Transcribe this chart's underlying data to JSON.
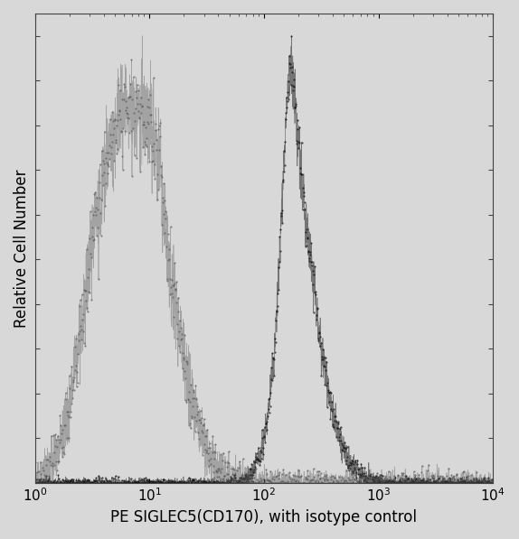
{
  "title": "",
  "xlabel": "PE SIGLEC5(CD170), with isotype control",
  "ylabel": "Relative Cell Number",
  "xlim_log": [
    1,
    10000
  ],
  "ylim": [
    0,
    1.05
  ],
  "background_color": "#d8d8d8",
  "plot_bg_color": "#d8d8d8",
  "isotype_peak_log": 0.9,
  "isotype_sigma": 0.28,
  "isotype_color": "#555555",
  "sample_peak_log": 2.28,
  "sample_sigma": 0.15,
  "sample_color": "#111111",
  "tick_fontsize": 11,
  "label_fontsize": 12,
  "spine_color": "#444444"
}
